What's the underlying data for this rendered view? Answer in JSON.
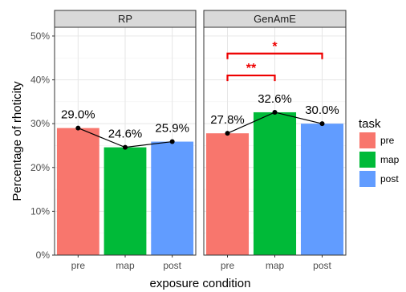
{
  "chart_data": {
    "type": "bar",
    "xlabel": "exposure condition",
    "ylabel": "Percentage of rhoticity",
    "ylim": [
      0,
      52
    ],
    "y_ticks": [
      0,
      10,
      20,
      30,
      40,
      50
    ],
    "y_tick_labels": [
      "0%",
      "10%",
      "20%",
      "30%",
      "40%",
      "50%"
    ],
    "categories": [
      "pre",
      "map",
      "post"
    ],
    "grid": true,
    "facets": [
      {
        "name": "RP",
        "values": [
          29.0,
          24.6,
          25.9
        ],
        "labels": [
          "29.0%",
          "24.6%",
          "25.9%"
        ]
      },
      {
        "name": "GenAmE",
        "values": [
          27.8,
          32.6,
          30.0
        ],
        "labels": [
          "27.8%",
          "32.6%",
          "30.0%"
        ]
      }
    ],
    "legend": {
      "title": "task",
      "placement": "right",
      "items": [
        {
          "label": "pre",
          "color": "#F8766D"
        },
        {
          "label": "map",
          "color": "#00BA38"
        },
        {
          "label": "post",
          "color": "#619CFF"
        }
      ]
    },
    "significance": [
      {
        "facet": 1,
        "from": "pre",
        "to": "map",
        "label": "**",
        "y": 41
      },
      {
        "facet": 1,
        "from": "pre",
        "to": "post",
        "label": "*",
        "y": 46
      }
    ]
  }
}
